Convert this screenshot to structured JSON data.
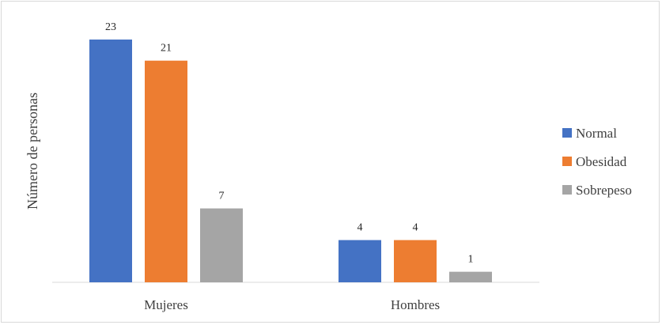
{
  "chart_data": {
    "type": "bar",
    "title": "",
    "xlabel": "",
    "ylabel": "Número de personas",
    "categories": [
      "Mujeres",
      "Hombres"
    ],
    "series": [
      {
        "name": "Normal",
        "values": [
          23,
          4
        ],
        "color": "#4472c4"
      },
      {
        "name": "Obesidad",
        "values": [
          21,
          4
        ],
        "color": "#ed7d31"
      },
      {
        "name": "Sobrepeso",
        "values": [
          7,
          1
        ],
        "color": "#a5a5a5"
      }
    ],
    "ylim": [
      0,
      23
    ],
    "grid": false,
    "data_labels": true,
    "legend_position": "right"
  }
}
